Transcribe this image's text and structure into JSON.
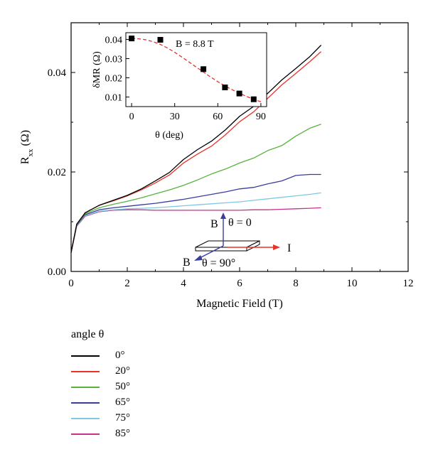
{
  "chart_data": [
    {
      "type": "line",
      "xlabel": "Magnetic Field (T)",
      "ylabel_main": "R",
      "ylabel_sub": "xx",
      "ylabel_unit": "(Ω)",
      "xlim": [
        0,
        12
      ],
      "ylim": [
        0,
        0.05
      ],
      "xticks": [
        0,
        2,
        4,
        6,
        8,
        10,
        12
      ],
      "yticks": [
        0,
        0.02,
        0.04
      ],
      "xtick_labels": [
        "0",
        "2",
        "4",
        "6",
        "8",
        "10",
        "12"
      ],
      "ytick_labels": [
        "0.00",
        "0.02",
        "0.04"
      ],
      "legend_title": "angle θ",
      "legend_placement": "below",
      "series": [
        {
          "name": "0°",
          "color": "#000000",
          "x": [
            0,
            0.2,
            0.5,
            1,
            1.5,
            2,
            2.5,
            3,
            3.5,
            4,
            4.5,
            5,
            5.5,
            6,
            6.5,
            7,
            7.5,
            8,
            8.5,
            8.9
          ],
          "y": [
            0.0038,
            0.0095,
            0.0118,
            0.0133,
            0.0143,
            0.0153,
            0.0166,
            0.0182,
            0.0199,
            0.0225,
            0.0245,
            0.0262,
            0.0285,
            0.0312,
            0.0332,
            0.0358,
            0.0385,
            0.0408,
            0.0432,
            0.0455
          ]
        },
        {
          "name": "20°",
          "color": "#e8322b",
          "x": [
            0,
            0.2,
            0.5,
            1,
            1.5,
            2,
            2.5,
            3,
            3.5,
            4,
            4.5,
            5,
            5.5,
            6,
            6.5,
            7,
            7.5,
            8,
            8.5,
            8.9
          ],
          "y": [
            0.0038,
            0.0095,
            0.0118,
            0.0133,
            0.0142,
            0.0152,
            0.0164,
            0.0178,
            0.0194,
            0.0218,
            0.0236,
            0.0252,
            0.0275,
            0.0301,
            0.0321,
            0.0348,
            0.0375,
            0.0398,
            0.0422,
            0.0442
          ]
        },
        {
          "name": "50°",
          "color": "#56b33c",
          "x": [
            0,
            0.2,
            0.5,
            1,
            1.5,
            2,
            2.5,
            3,
            3.5,
            4,
            4.5,
            5,
            5.5,
            6,
            6.5,
            7,
            7.5,
            8,
            8.5,
            8.9
          ],
          "y": [
            0.0038,
            0.0094,
            0.0116,
            0.0128,
            0.0135,
            0.0141,
            0.0148,
            0.0156,
            0.0164,
            0.0173,
            0.0184,
            0.0196,
            0.0206,
            0.0218,
            0.0228,
            0.0243,
            0.0253,
            0.0272,
            0.0288,
            0.0296
          ]
        },
        {
          "name": "65°",
          "color": "#3b3d9e",
          "x": [
            0,
            0.2,
            0.5,
            1,
            1.5,
            2,
            2.5,
            3,
            3.5,
            4,
            4.5,
            5,
            5.5,
            6,
            6.5,
            7,
            7.5,
            8,
            8.5,
            8.9
          ],
          "y": [
            0.0038,
            0.0093,
            0.0114,
            0.0124,
            0.0128,
            0.0131,
            0.0134,
            0.0137,
            0.0141,
            0.0145,
            0.015,
            0.0155,
            0.016,
            0.0166,
            0.0169,
            0.0176,
            0.0182,
            0.0193,
            0.0195,
            0.0195
          ]
        },
        {
          "name": "75°",
          "color": "#7ec8e3",
          "x": [
            0,
            0.2,
            0.5,
            1,
            1.5,
            2,
            2.5,
            3,
            3.5,
            4,
            4.5,
            5,
            5.5,
            6,
            6.5,
            7,
            7.5,
            8,
            8.5,
            8.9
          ],
          "y": [
            0.0038,
            0.0092,
            0.0112,
            0.0121,
            0.0124,
            0.0126,
            0.0127,
            0.0128,
            0.013,
            0.0132,
            0.0134,
            0.0136,
            0.0138,
            0.014,
            0.0143,
            0.0146,
            0.0149,
            0.0152,
            0.0155,
            0.0158
          ]
        },
        {
          "name": "85°",
          "color": "#c8328c",
          "x": [
            0,
            0.2,
            0.5,
            1,
            1.5,
            2,
            2.5,
            3,
            3.5,
            4,
            4.5,
            5,
            5.5,
            6,
            6.5,
            7,
            7.5,
            8,
            8.5,
            8.9
          ],
          "y": [
            0.0038,
            0.0091,
            0.0111,
            0.012,
            0.0123,
            0.0124,
            0.0124,
            0.0123,
            0.0123,
            0.0123,
            0.0123,
            0.0123,
            0.0123,
            0.0123,
            0.0124,
            0.0124,
            0.0125,
            0.0126,
            0.0127,
            0.0128
          ]
        }
      ]
    },
    {
      "type": "scatter",
      "xlabel": "θ (deg)",
      "ylabel": "δMR (Ω)",
      "annotation": "B = 8.8 T",
      "xlim": [
        -4,
        94
      ],
      "ylim": [
        0.005,
        0.0435
      ],
      "xticks": [
        0,
        30,
        60,
        90
      ],
      "yticks": [
        0.01,
        0.02,
        0.03,
        0.04
      ],
      "xtick_labels": [
        "0",
        "30",
        "60",
        "90"
      ],
      "ytick_labels": [
        "0.01",
        "0.02",
        "0.03",
        "0.04"
      ],
      "series": [
        {
          "marker_color": "#000000",
          "fit_color": "#e8322b",
          "x": [
            0,
            20,
            50,
            65,
            75,
            85
          ],
          "y": [
            0.0405,
            0.0398,
            0.0245,
            0.015,
            0.0118,
            0.0088
          ],
          "fit_x": [
            0,
            5,
            10,
            15,
            20,
            25,
            30,
            35,
            40,
            45,
            50,
            55,
            60,
            65,
            70,
            75,
            80,
            85,
            90
          ],
          "fit_y": [
            0.0405,
            0.0403,
            0.0398,
            0.0388,
            0.0374,
            0.0355,
            0.0333,
            0.0308,
            0.0282,
            0.0256,
            0.023,
            0.0204,
            0.018,
            0.0158,
            0.0138,
            0.012,
            0.0103,
            0.0088,
            0.0075
          ]
        }
      ]
    }
  ],
  "schematic": {
    "b_top_label": "B",
    "theta_zero_label": "θ = 0",
    "current_label": "I",
    "b_bottom_label": "B",
    "theta_ninety_label": "θ = 90°"
  }
}
